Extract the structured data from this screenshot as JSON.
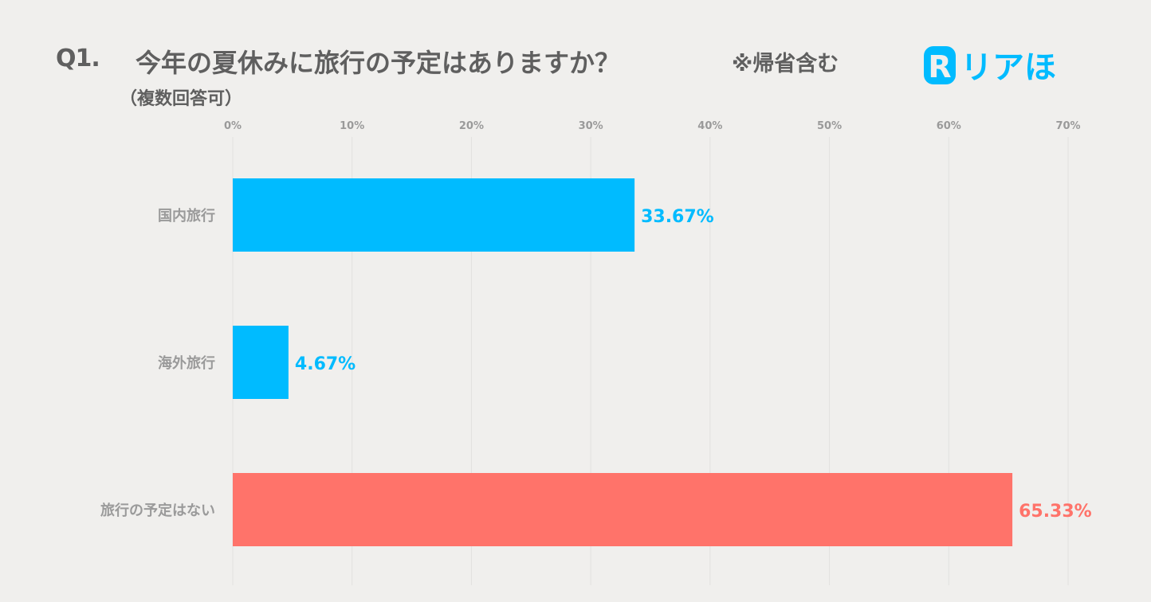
{
  "header": {
    "question_number": "Q1.",
    "question": "今年の夏休みに旅行の予定はありますか？",
    "note": "※帰省含む",
    "subtitle": "（複数回答可）",
    "logo_text": "リアほ",
    "logo_letter": "R"
  },
  "colors": {
    "primary": "#00bbff",
    "accent": "#ff736a",
    "text": "#5f5f5f",
    "axis_text": "#9a9a9a",
    "grid": "#e2e1df",
    "background": "#f0efed"
  },
  "chart_data": {
    "type": "bar",
    "orientation": "horizontal",
    "categories": [
      "国内旅行",
      "海外旅行",
      "旅行の予定はない"
    ],
    "values": [
      33.67,
      4.67,
      65.33
    ],
    "value_labels": [
      "33.67%",
      "4.67%",
      "65.33%"
    ],
    "bar_colors": [
      "#00bbff",
      "#00bbff",
      "#ff736a"
    ],
    "xlim": [
      0,
      70
    ],
    "ticks": [
      0,
      10,
      20,
      30,
      40,
      50,
      60,
      70
    ],
    "tick_labels": [
      "0%",
      "10%",
      "20%",
      "30%",
      "40%",
      "50%",
      "60%",
      "70%"
    ],
    "tick_position": "top",
    "grid": true,
    "legend": "none"
  }
}
